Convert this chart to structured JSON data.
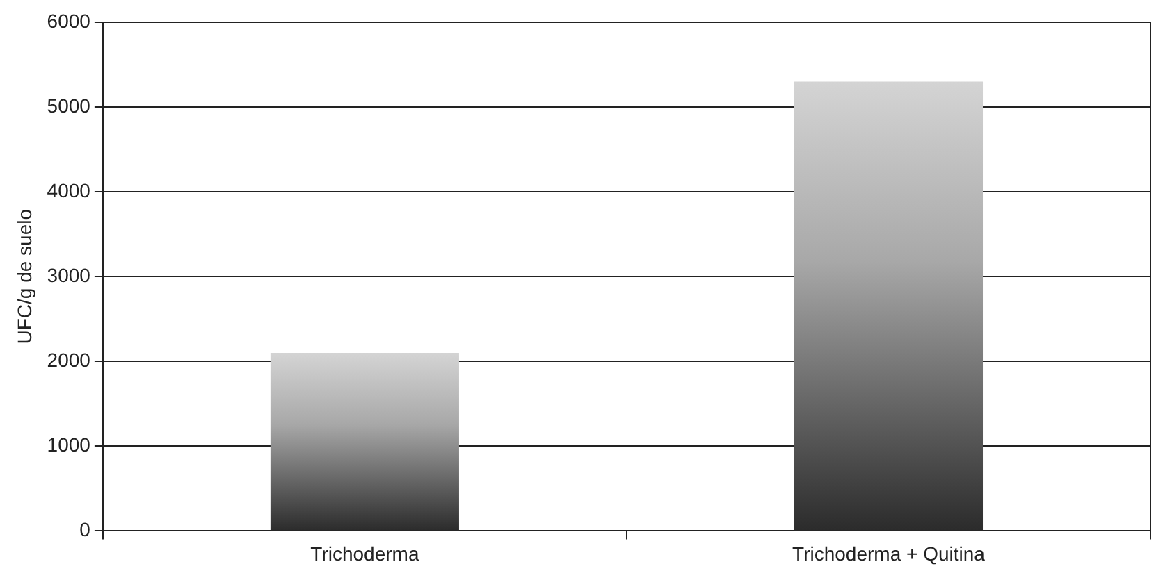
{
  "chart_data": {
    "type": "bar",
    "ylabel": "UFC/g de suelo",
    "categories": [
      "Trichoderma",
      "Trichoderma + Quitina"
    ],
    "values": [
      2100,
      5300
    ],
    "color": "#2b2b2b",
    "ylim": [
      0,
      6000
    ],
    "yticks": [
      0,
      1000,
      2000,
      3000,
      4000,
      5000,
      6000
    ],
    "grid": "y",
    "legend": false
  }
}
